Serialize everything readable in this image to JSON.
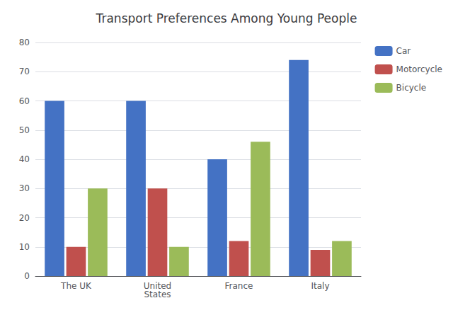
{
  "chart_data": {
    "type": "bar",
    "title": "Transport Preferences Among Young People",
    "categories": [
      "The UK",
      "United\nStates",
      "France",
      "Italy"
    ],
    "series": [
      {
        "name": "Car",
        "color": "#4472C4",
        "values": [
          60,
          60,
          40,
          74
        ]
      },
      {
        "name": "Motorcycle",
        "color": "#C0504D",
        "values": [
          10,
          30,
          12,
          9
        ]
      },
      {
        "name": "Bicycle",
        "color": "#9BBB59",
        "values": [
          30,
          10,
          46,
          12
        ]
      }
    ],
    "ylim": [
      0,
      80
    ],
    "yticks": [
      0,
      10,
      20,
      30,
      40,
      50,
      60,
      70,
      80
    ],
    "grid": true,
    "legend": "upper right"
  }
}
